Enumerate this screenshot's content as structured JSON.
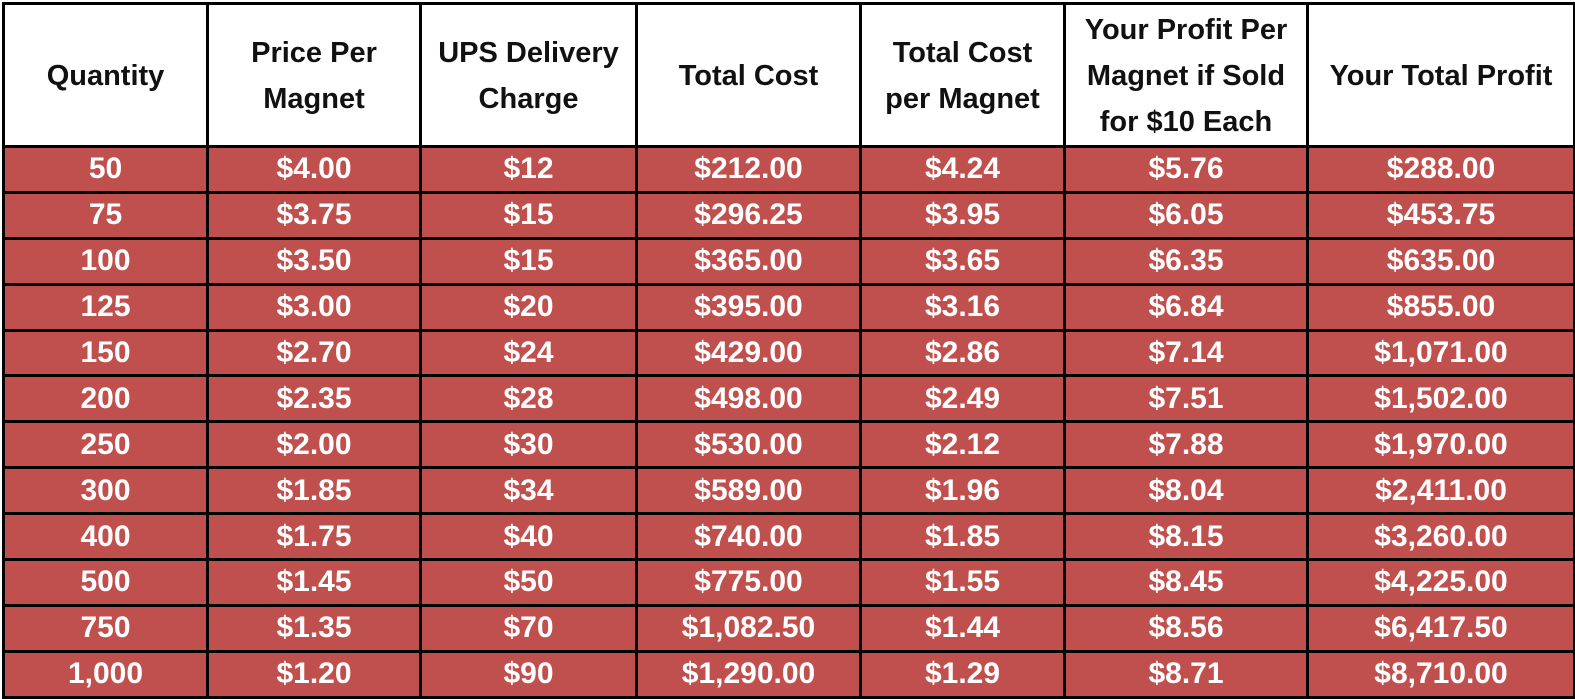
{
  "table": {
    "headers": [
      "Quantity",
      "Price Per\nMagnet",
      "UPS Delivery\nCharge",
      "Total Cost",
      "Total Cost\nper Magnet",
      "Your Profit Per\nMagnet if Sold\nfor $10 Each",
      "Your Total Profit"
    ],
    "rows": [
      [
        "50",
        "$4.00",
        "$12",
        "$212.00",
        "$4.24",
        "$5.76",
        "$288.00"
      ],
      [
        "75",
        "$3.75",
        "$15",
        "$296.25",
        "$3.95",
        "$6.05",
        "$453.75"
      ],
      [
        "100",
        "$3.50",
        "$15",
        "$365.00",
        "$3.65",
        "$6.35",
        "$635.00"
      ],
      [
        "125",
        "$3.00",
        "$20",
        "$395.00",
        "$3.16",
        "$6.84",
        "$855.00"
      ],
      [
        "150",
        "$2.70",
        "$24",
        "$429.00",
        "$2.86",
        "$7.14",
        "$1,071.00"
      ],
      [
        "200",
        "$2.35",
        "$28",
        "$498.00",
        "$2.49",
        "$7.51",
        "$1,502.00"
      ],
      [
        "250",
        "$2.00",
        "$30",
        "$530.00",
        "$2.12",
        "$7.88",
        "$1,970.00"
      ],
      [
        "300",
        "$1.85",
        "$34",
        "$589.00",
        "$1.96",
        "$8.04",
        "$2,411.00"
      ],
      [
        "400",
        "$1.75",
        "$40",
        "$740.00",
        "$1.85",
        "$8.15",
        "$3,260.00"
      ],
      [
        "500",
        "$1.45",
        "$50",
        "$775.00",
        "$1.55",
        "$8.45",
        "$4,225.00"
      ],
      [
        "750",
        "$1.35",
        "$70",
        "$1,082.50",
        "$1.44",
        "$8.56",
        "$6,417.50"
      ],
      [
        "1,000",
        "$1.20",
        "$90",
        "$1,290.00",
        "$1.29",
        "$8.71",
        "$8,710.00"
      ]
    ]
  },
  "colors": {
    "row_fill": "#c0504d",
    "header_fill": "#ffffff",
    "grid": "#000000",
    "body_text": "#ffffff",
    "header_text": "#111111"
  }
}
